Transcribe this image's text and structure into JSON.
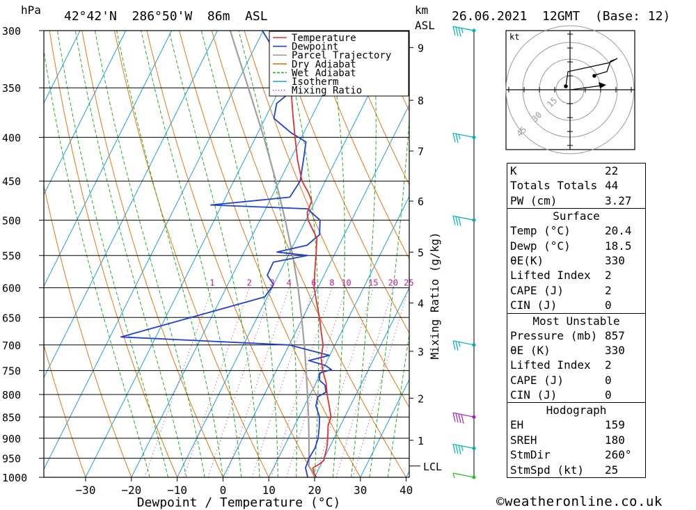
{
  "header": {
    "pressure_unit": "hPa",
    "location": "42°42'N  286°50'W  86m  ASL",
    "height_unit_line1": "km",
    "height_unit_line2": "ASL",
    "datetime": "26.06.2021  12GMT  (Base: 12)"
  },
  "chart_data": {
    "type": "line",
    "subtype": "skew-T log-P diagram",
    "xlabel": "Dewpoint / Temperature (°C)",
    "x_ticks": [
      -30,
      -20,
      -10,
      0,
      10,
      20,
      30,
      40
    ],
    "x_range": [
      -40,
      40
    ],
    "y_axis_label": "hPa",
    "pressure_levels": [
      300,
      350,
      400,
      450,
      500,
      550,
      600,
      650,
      700,
      750,
      800,
      850,
      900,
      950,
      1000
    ],
    "y_range": [
      1000,
      300
    ],
    "height_axis_label": "km ASL",
    "height_ticks": [
      {
        "km": "1",
        "p": 905
      },
      {
        "km": "2",
        "p": 808
      },
      {
        "km": "3",
        "p": 712
      },
      {
        "km": "4",
        "p": 625
      },
      {
        "km": "5",
        "p": 545
      },
      {
        "km": "6",
        "p": 475
      },
      {
        "km": "7",
        "p": 415
      },
      {
        "km": "8",
        "p": 362
      },
      {
        "km": "9",
        "p": 314
      }
    ],
    "lcl_label": "LCL",
    "lcl_pressure": 970,
    "mixing_ratio_axis_label": "Mixing Ratio (g/kg)",
    "mixing_ratio_lines": [
      "1",
      "2",
      "3",
      "4",
      "6",
      "8",
      "10",
      "15",
      "20",
      "25"
    ],
    "legend": {
      "placement": "top-center",
      "items": [
        {
          "name": "Temperature",
          "color": "#e0302f",
          "style": "solid"
        },
        {
          "name": "Dewpoint",
          "color": "#2040d0",
          "style": "solid"
        },
        {
          "name": "Parcel Trajectory",
          "color": "#a0a0a0",
          "style": "solid"
        },
        {
          "name": "Dry Adiabat",
          "color": "#e07810",
          "style": "solid"
        },
        {
          "name": "Wet Adiabat",
          "color": "#20b020",
          "style": "dashed"
        },
        {
          "name": "Isotherm",
          "color": "#1ea0e0",
          "style": "solid"
        },
        {
          "name": "Mixing Ratio",
          "color": "#c02090",
          "style": "dotted"
        }
      ]
    },
    "series": [
      {
        "name": "Temperature",
        "color": "#e0302f",
        "points": [
          [
            1000,
            20.4
          ],
          [
            990,
            19.5
          ],
          [
            975,
            18.6
          ],
          [
            965,
            19.6
          ],
          [
            955,
            20.2
          ],
          [
            950,
            20.0
          ],
          [
            925,
            19.5
          ],
          [
            900,
            18.6
          ],
          [
            870,
            17.3
          ],
          [
            850,
            17.0
          ],
          [
            825,
            15.4
          ],
          [
            800,
            13.7
          ],
          [
            775,
            12.2
          ],
          [
            750,
            10.1
          ],
          [
            725,
            8.4
          ],
          [
            700,
            7.4
          ],
          [
            680,
            5.9
          ],
          [
            650,
            3.6
          ],
          [
            620,
            1.0
          ],
          [
            600,
            -0.8
          ],
          [
            575,
            -2.4
          ],
          [
            550,
            -3.9
          ],
          [
            525,
            -5.6
          ],
          [
            500,
            -9.5
          ],
          [
            490,
            -10.5
          ],
          [
            475,
            -10.8
          ],
          [
            465,
            -12.3
          ],
          [
            450,
            -15.1
          ],
          [
            425,
            -18.4
          ],
          [
            400,
            -21.4
          ],
          [
            375,
            -24.5
          ],
          [
            350,
            -27.7
          ],
          [
            325,
            -30.8
          ],
          [
            300,
            -36.6
          ]
        ]
      },
      {
        "name": "Dewpoint",
        "color": "#2040d0",
        "points": [
          [
            1000,
            18.5
          ],
          [
            975,
            17.0
          ],
          [
            950,
            16.7
          ],
          [
            925,
            16.9
          ],
          [
            900,
            16.5
          ],
          [
            875,
            15.6
          ],
          [
            850,
            14.5
          ],
          [
            825,
            12.5
          ],
          [
            805,
            11.9
          ],
          [
            795,
            13.2
          ],
          [
            780,
            12.2
          ],
          [
            770,
            10.5
          ],
          [
            755,
            9.7
          ],
          [
            748,
            11.9
          ],
          [
            740,
            10.2
          ],
          [
            730,
            6.0
          ],
          [
            720,
            9.9
          ],
          [
            700,
            0.0
          ],
          [
            685,
            -37.6
          ],
          [
            615,
            -10.6
          ],
          [
            595,
            -10.0
          ],
          [
            580,
            -12.4
          ],
          [
            560,
            -12.5
          ],
          [
            550,
            -5.8
          ],
          [
            545,
            -12.8
          ],
          [
            535,
            -7.0
          ],
          [
            520,
            -5.4
          ],
          [
            500,
            -6.9
          ],
          [
            485,
            -10.9
          ],
          [
            480,
            -32.4
          ],
          [
            470,
            -16.0
          ],
          [
            450,
            -15.5
          ],
          [
            425,
            -17.1
          ],
          [
            405,
            -18.5
          ],
          [
            395,
            -22.8
          ],
          [
            380,
            -28.1
          ],
          [
            365,
            -29.1
          ],
          [
            355,
            -27.5
          ],
          [
            345,
            -29.6
          ],
          [
            330,
            -32.3
          ],
          [
            315,
            -35.8
          ],
          [
            300,
            -40.2
          ]
        ]
      },
      {
        "name": "Parcel Trajectory",
        "color": "#a0a0a0",
        "points": [
          [
            1000,
            20.4
          ],
          [
            970,
            17.5
          ],
          [
            950,
            16.7
          ],
          [
            900,
            14.5
          ],
          [
            850,
            12.1
          ],
          [
            800,
            9.4
          ],
          [
            750,
            6.5
          ],
          [
            700,
            3.3
          ],
          [
            650,
            -0.3
          ],
          [
            600,
            -4.3
          ],
          [
            550,
            -9.0
          ],
          [
            500,
            -14.5
          ],
          [
            450,
            -20.8
          ],
          [
            400,
            -28.2
          ],
          [
            350,
            -37.0
          ],
          [
            300,
            -47.2
          ]
        ]
      }
    ]
  },
  "wind_profile": {
    "barb_color_default": "#00b0b0",
    "barb_color_highlight": "#a020c0",
    "barbs": [
      {
        "p": 300,
        "speed_kt": 35
      },
      {
        "p": 400,
        "speed_kt": 25
      },
      {
        "p": 500,
        "speed_kt": 30
      },
      {
        "p": 700,
        "speed_kt": 25
      },
      {
        "p": 850,
        "speed_kt": 40,
        "highlight": true
      },
      {
        "p": 925,
        "speed_kt": 35
      },
      {
        "p": 1000,
        "speed_kt": 5,
        "color": "#20c020"
      }
    ]
  },
  "hodograph": {
    "unit": "kt",
    "ring_labels": [
      "15",
      "30",
      "45"
    ],
    "storm_motion_label": "StmDir 260° / 25 kt"
  },
  "indices": {
    "top": [
      {
        "label": "K",
        "value": "22"
      },
      {
        "label": "Totals Totals",
        "value": "44"
      },
      {
        "label": "PW (cm)",
        "value": "3.27"
      }
    ],
    "surface_title": "Surface",
    "surface": [
      {
        "label": "Temp (°C)",
        "value": "20.4"
      },
      {
        "label": "Dewp (°C)",
        "value": "18.5"
      },
      {
        "label": "θE(K)",
        "value": "330"
      },
      {
        "label": "Lifted Index",
        "value": "2"
      },
      {
        "label": "CAPE (J)",
        "value": "2"
      },
      {
        "label": "CIN (J)",
        "value": "0"
      }
    ],
    "unstable_title": "Most Unstable",
    "unstable": [
      {
        "label": "Pressure (mb)",
        "value": "857"
      },
      {
        "label": "θE (K)",
        "value": "330"
      },
      {
        "label": "Lifted Index",
        "value": "2"
      },
      {
        "label": "CAPE (J)",
        "value": "0"
      },
      {
        "label": "CIN (J)",
        "value": "0"
      }
    ],
    "hodo_title": "Hodograph",
    "hodo": [
      {
        "label": "EH",
        "value": "159"
      },
      {
        "label": "SREH",
        "value": "180"
      },
      {
        "label": "StmDir",
        "value": "260°"
      },
      {
        "label": "StmSpd (kt)",
        "value": "25"
      }
    ]
  },
  "footer": {
    "copyright_symbol": "©",
    "site": "weatheronline.co.uk"
  }
}
